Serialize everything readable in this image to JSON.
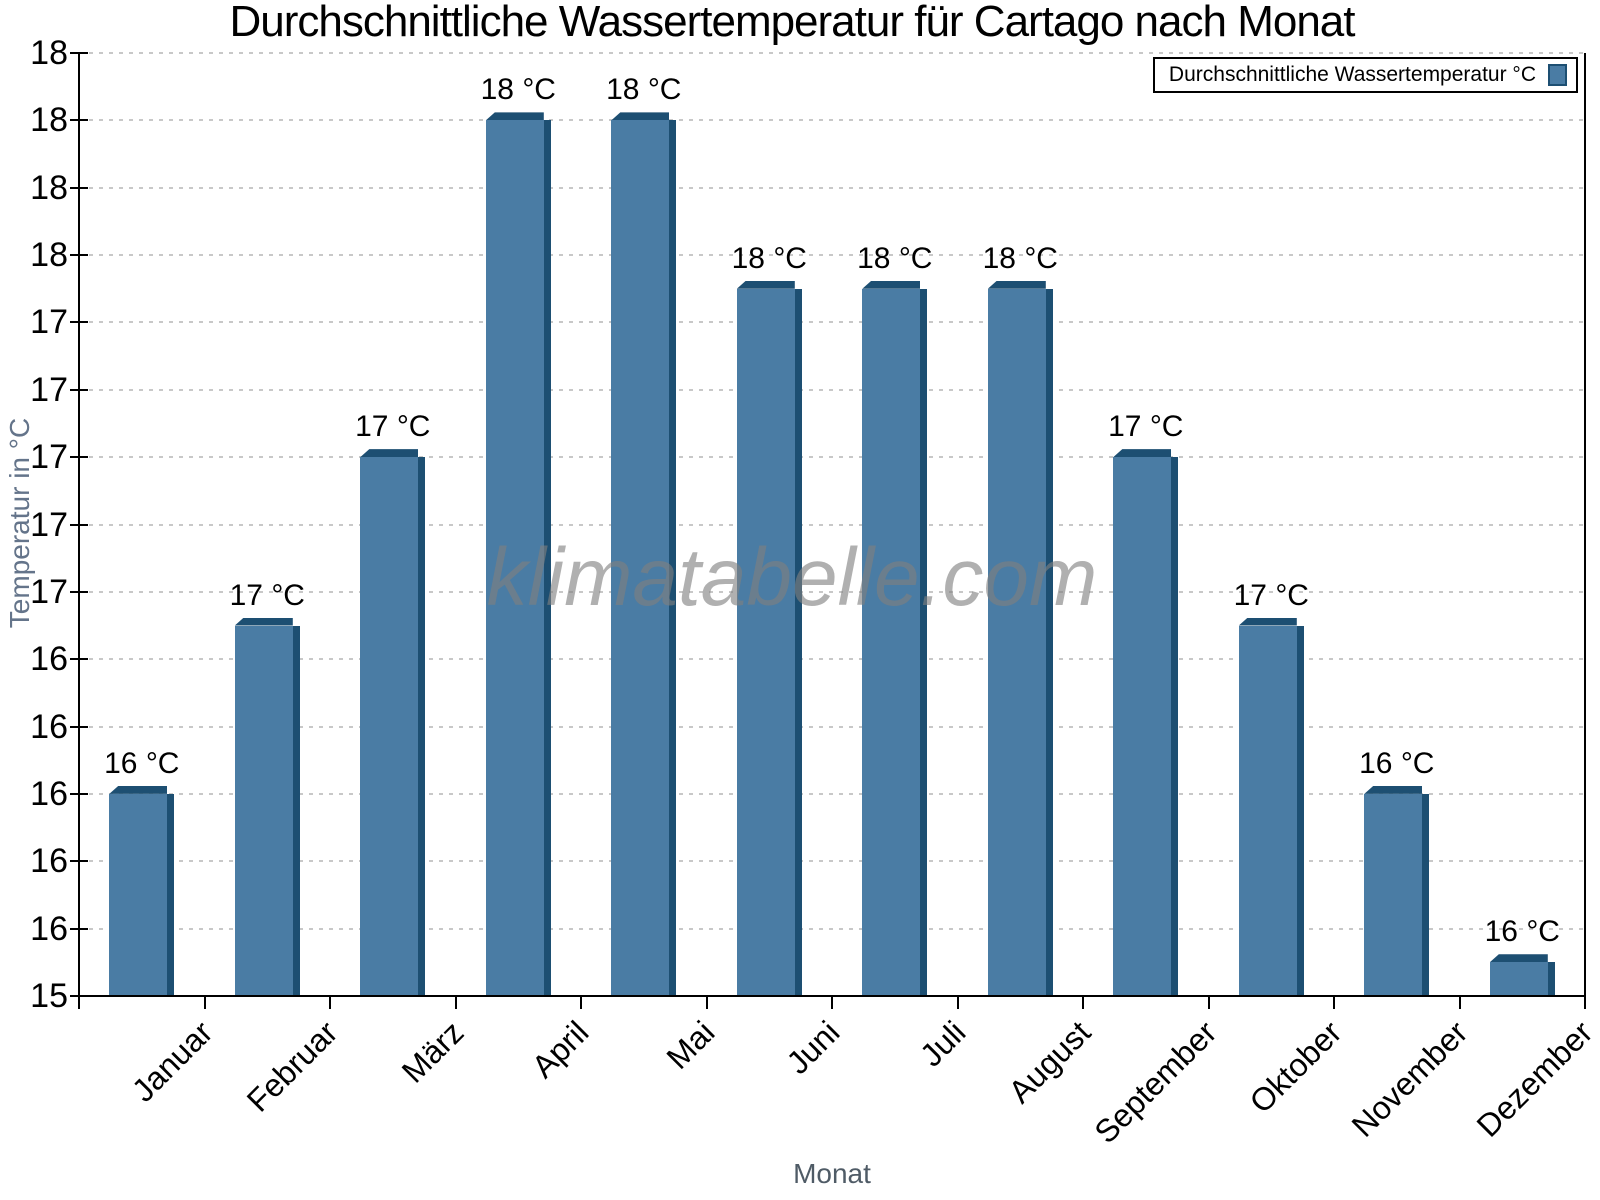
{
  "title": "Durchschnittliche Wassertemperatur für Cartago nach Monat",
  "watermark": "klimatabelle.com",
  "legend": {
    "label": "Durchschnittliche Wassertemperatur °C",
    "position": "top-right"
  },
  "y_axis": {
    "title": "Temperatur in °C",
    "tick_labels_top_to_bottom": [
      "18",
      "18",
      "18",
      "18",
      "17",
      "17",
      "17",
      "17",
      "17",
      "16",
      "16",
      "16",
      "16",
      "16",
      "15"
    ]
  },
  "x_axis": {
    "title": "Monat"
  },
  "chart_data": {
    "type": "bar",
    "title": "Durchschnittliche Wassertemperatur für Cartago nach Monat",
    "categories": [
      "Januar",
      "Februar",
      "März",
      "April",
      "Mai",
      "Juni",
      "Juli",
      "August",
      "September",
      "Oktober",
      "November",
      "Dezember"
    ],
    "values": [
      16.0,
      16.5,
      17.0,
      18.0,
      18.0,
      17.5,
      17.5,
      17.5,
      17.0,
      16.5,
      16.0,
      15.5
    ],
    "bar_labels": [
      "16 °C",
      "17 °C",
      "17 °C",
      "18 °C",
      "18 °C",
      "18 °C",
      "18 °C",
      "18 °C",
      "17 °C",
      "17 °C",
      "16 °C",
      "16 °C"
    ],
    "xlabel": "Monat",
    "ylabel": "Temperatur in °C",
    "ylim": [
      15.4,
      18.2
    ],
    "ytick_step": 0.2,
    "grid": "horizontal-dotted",
    "legend_position": "top-right",
    "bar_color": "#4A7CA4",
    "bar_edge_color": "#1D4F72",
    "grid_color": "#c8c8c8",
    "axis_color": "#000000"
  }
}
